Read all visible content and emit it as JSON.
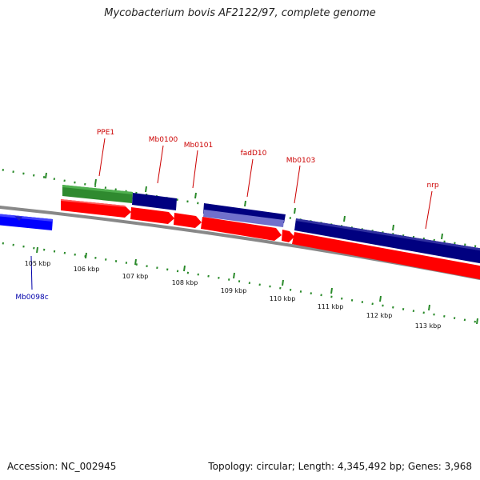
{
  "title": "Mycobacterium bovis AF2122/97, complete genome",
  "footer": {
    "accession": "Accession: NC_002945",
    "topology": "Topology: circular; Length: 4,345,492 bp; Genes: 3,968"
  },
  "scale_labels": [
    "105 kbp",
    "106 kbp",
    "107 kbp",
    "108 kbp",
    "109 kbp",
    "110 kbp",
    "111 kbp",
    "112 kbp",
    "113 kbp"
  ],
  "gene_labels": [
    {
      "name": "PPE1",
      "color": "#cc0000"
    },
    {
      "name": "Mb0100",
      "color": "#cc0000"
    },
    {
      "name": "Mb0101",
      "color": "#cc0000"
    },
    {
      "name": "fadD10",
      "color": "#cc0000"
    },
    {
      "name": "Mb0103",
      "color": "#cc0000"
    },
    {
      "name": "nrp",
      "color": "#cc0000"
    },
    {
      "name": "Mb0098c",
      "color": "#0000aa"
    }
  ],
  "colors": {
    "cds_forward": "#ff0000",
    "cds_reverse": "#0000ff",
    "blast_green": "#2f8a2f",
    "blast_navy": "#000080",
    "blast_purple": "#7070cc",
    "backbone": "#888888",
    "tick_green": "#2a8a2a"
  }
}
